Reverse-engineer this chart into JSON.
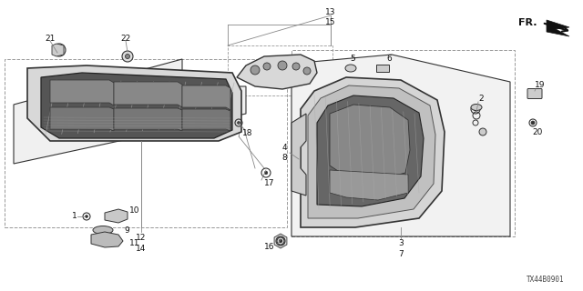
{
  "bg_color": "#ffffff",
  "diagram_code": "TX44B0901",
  "line_color": "#333333",
  "gray_line": "#888888",
  "dash_line": "#999999"
}
